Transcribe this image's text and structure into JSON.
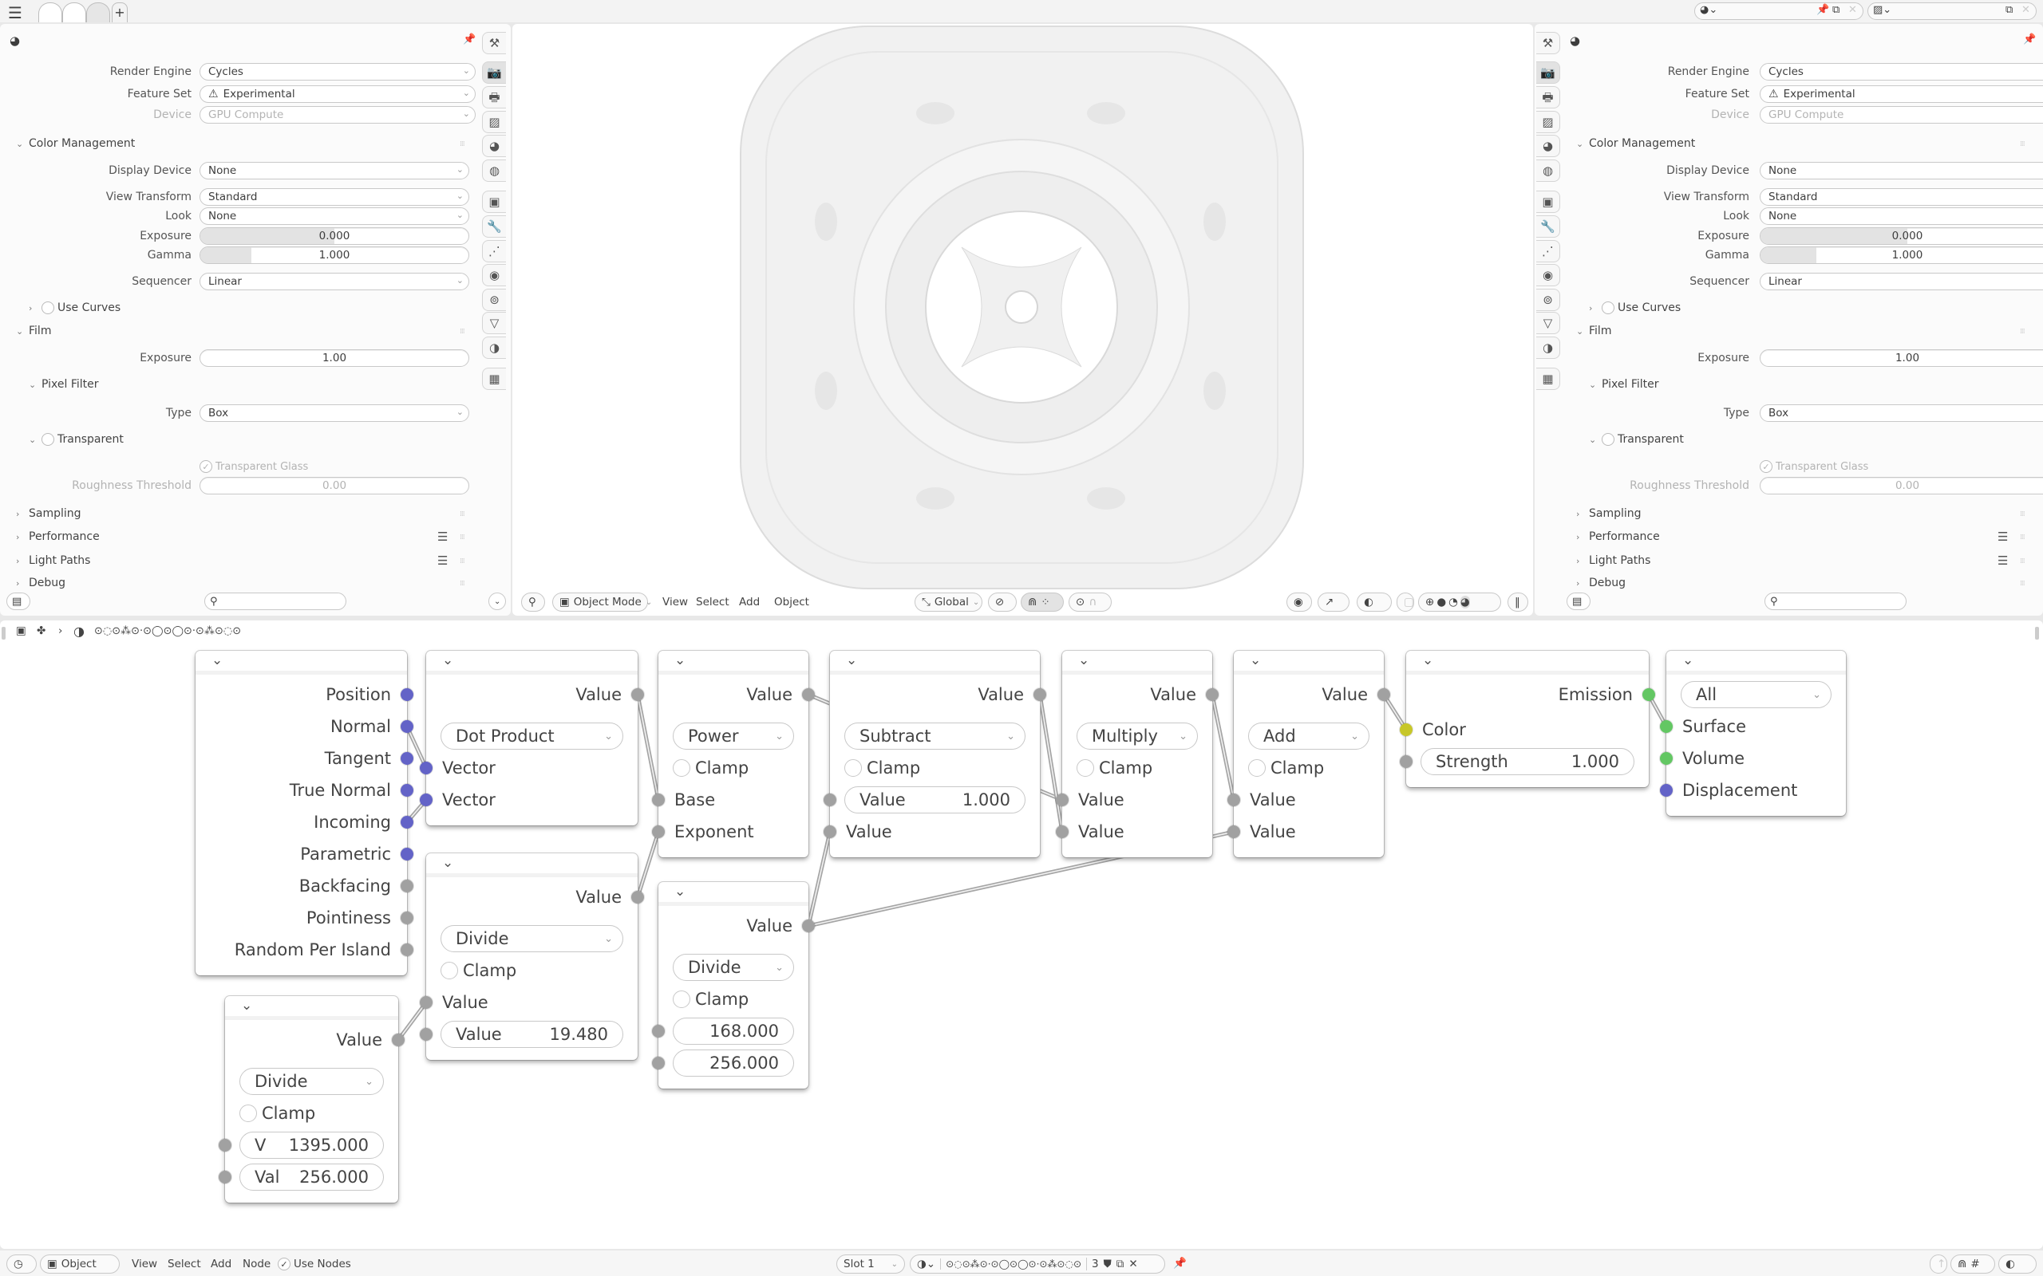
{
  "topbar": {
    "menu_icon": "hamburger-icon",
    "workspace_tabs": [
      "",
      "",
      ""
    ],
    "add_tab": "+",
    "scene_selector": {
      "icon": "scene-icon",
      "value": ""
    },
    "view_layer_selector": {
      "icon": "view-layer-icon",
      "value": ""
    }
  },
  "properties": {
    "header_icon": "world-render-icon",
    "rows": [
      {
        "type": "select",
        "label": "Render Engine",
        "value": "Cycles"
      },
      {
        "type": "select",
        "label": "Feature Set",
        "value": "Experimental",
        "icon": "warning-icon"
      },
      {
        "type": "select",
        "label": "Device",
        "value": "GPU Compute",
        "disabled": true
      },
      {
        "type": "panel",
        "label": "Color Management",
        "open": true
      },
      {
        "type": "select",
        "label": "Display Device",
        "value": "None"
      },
      {
        "type": "select",
        "label": "View Transform",
        "value": "Standard"
      },
      {
        "type": "select",
        "label": "Look",
        "value": "None"
      },
      {
        "type": "slider",
        "label": "Exposure",
        "value": "0.000",
        "fill": 0.5
      },
      {
        "type": "slider",
        "label": "Gamma",
        "value": "1.000",
        "fill": 0.19
      },
      {
        "type": "select",
        "label": "Sequencer",
        "value": "Linear"
      },
      {
        "type": "subpanel",
        "label": "Use Curves",
        "open": false,
        "checkbox": false
      },
      {
        "type": "panel",
        "label": "Film",
        "open": true
      },
      {
        "type": "number",
        "label": "Exposure",
        "value": "1.00"
      },
      {
        "type": "subpanel",
        "label": "Pixel Filter",
        "open": true
      },
      {
        "type": "select",
        "label": "Type",
        "value": "Box"
      },
      {
        "type": "subpanel",
        "label": "Transparent",
        "open": true,
        "checkbox": false
      },
      {
        "type": "checkbox",
        "label": "Transparent Glass",
        "checked": true,
        "disabled": true
      },
      {
        "type": "number",
        "label": "Roughness Threshold",
        "value": "0.00",
        "disabled": true
      },
      {
        "type": "panel",
        "label": "Sampling",
        "open": false
      },
      {
        "type": "panel",
        "label": "Performance",
        "open": false,
        "list_icon": true
      },
      {
        "type": "panel",
        "label": "Light Paths",
        "open": false,
        "list_icon": true
      },
      {
        "type": "panel",
        "label": "Debug",
        "open": false
      }
    ],
    "tabs": [
      {
        "icon": "tool-icon",
        "glyph": "⚒"
      },
      {
        "icon": "render-icon",
        "glyph": "📷",
        "active": true
      },
      {
        "icon": "output-icon",
        "glyph": "🖶"
      },
      {
        "icon": "view-layer-icon",
        "glyph": "▨"
      },
      {
        "icon": "scene-icon",
        "glyph": "◕"
      },
      {
        "icon": "world-icon",
        "glyph": "◍"
      },
      {
        "icon": "object-icon",
        "glyph": "▣"
      },
      {
        "icon": "modifier-wrench-icon",
        "glyph": "🔧"
      },
      {
        "icon": "particles-icon",
        "glyph": "⋰"
      },
      {
        "icon": "physics-icon",
        "glyph": "◉"
      },
      {
        "icon": "constraints-icon",
        "glyph": "⊚"
      },
      {
        "icon": "data-icon",
        "glyph": "▽"
      },
      {
        "icon": "material-icon",
        "glyph": "◑"
      },
      {
        "icon": "texture-icon",
        "glyph": "▦"
      }
    ],
    "search_placeholder": ""
  },
  "viewport": {
    "editor_icon": "object-mode-editor-icon",
    "mode": "Object Mode",
    "menus": [
      "View",
      "Select",
      "Add",
      "Object"
    ],
    "orientation": "Global"
  },
  "node_editor": {
    "breadcrumb": {
      "material_name": "⊙◌⊙⁂⊙·⊙◯⊙◯⊙·⊙⁂⊙◌⊙"
    },
    "socket_colors": {
      "vector": "#6363c7",
      "float": "#a1a1a1",
      "color": "#c7c729",
      "shader": "#63c763"
    },
    "nodes": [
      {
        "id": "geometry",
        "rows": [
          {
            "kind": "out",
            "label": "Position",
            "socket": "vector"
          },
          {
            "kind": "out",
            "label": "Normal",
            "socket": "vector"
          },
          {
            "kind": "out",
            "label": "Tangent",
            "socket": "vector"
          },
          {
            "kind": "out",
            "label": "True Normal",
            "socket": "vector"
          },
          {
            "kind": "out",
            "label": "Incoming",
            "socket": "vector"
          },
          {
            "kind": "out",
            "label": "Parametric",
            "socket": "vector"
          },
          {
            "kind": "out",
            "label": "Backfacing",
            "socket": "float"
          },
          {
            "kind": "out",
            "label": "Pointiness",
            "socket": "float"
          },
          {
            "kind": "out",
            "label": "Random Per Island",
            "socket": "float"
          }
        ]
      },
      {
        "id": "dot",
        "rows": [
          {
            "kind": "out",
            "label": "Value",
            "socket": "float"
          },
          {
            "kind": "select",
            "value": "Dot Product"
          },
          {
            "kind": "in",
            "label": "Vector",
            "socket": "vector"
          },
          {
            "kind": "in",
            "label": "Vector",
            "socket": "vector"
          }
        ]
      },
      {
        "id": "divmid",
        "rows": [
          {
            "kind": "out",
            "label": "Value",
            "socket": "float"
          },
          {
            "kind": "select",
            "value": "Divide"
          },
          {
            "kind": "check",
            "label": "Clamp"
          },
          {
            "kind": "in",
            "label": "Value",
            "socket": "float"
          },
          {
            "kind": "field",
            "label": "Value",
            "value": "19.480",
            "socket": "float"
          }
        ]
      },
      {
        "id": "divbl",
        "rows": [
          {
            "kind": "out",
            "label": "Value",
            "socket": "float"
          },
          {
            "kind": "select",
            "value": "Divide"
          },
          {
            "kind": "check",
            "label": "Clamp"
          },
          {
            "kind": "field",
            "label": "V",
            "value": "1395.000",
            "socket": "float"
          },
          {
            "kind": "field",
            "label": "Val",
            "value": "256.000",
            "socket": "float"
          }
        ]
      },
      {
        "id": "power",
        "rows": [
          {
            "kind": "out",
            "label": "Value",
            "socket": "float"
          },
          {
            "kind": "select",
            "value": "Power"
          },
          {
            "kind": "check",
            "label": "Clamp"
          },
          {
            "kind": "in",
            "label": "Base",
            "socket": "float"
          },
          {
            "kind": "in",
            "label": "Exponent",
            "socket": "float"
          }
        ]
      },
      {
        "id": "divright",
        "rows": [
          {
            "kind": "out",
            "label": "Value",
            "socket": "float"
          },
          {
            "kind": "select",
            "value": "Divide"
          },
          {
            "kind": "check",
            "label": "Clamp"
          },
          {
            "kind": "field",
            "label": "",
            "value": "168.000",
            "socket": "float"
          },
          {
            "kind": "field",
            "label": "",
            "value": "256.000",
            "socket": "float"
          }
        ]
      },
      {
        "id": "subtract",
        "rows": [
          {
            "kind": "out",
            "label": "Value",
            "socket": "float"
          },
          {
            "kind": "select",
            "value": "Subtract"
          },
          {
            "kind": "check",
            "label": "Clamp"
          },
          {
            "kind": "field",
            "label": "Value",
            "value": "1.000",
            "socket": "float"
          },
          {
            "kind": "in",
            "label": "Value",
            "socket": "float"
          }
        ]
      },
      {
        "id": "multiply",
        "rows": [
          {
            "kind": "out",
            "label": "Value",
            "socket": "float"
          },
          {
            "kind": "select",
            "value": "Multiply"
          },
          {
            "kind": "check",
            "label": "Clamp"
          },
          {
            "kind": "in",
            "label": "Value",
            "socket": "float"
          },
          {
            "kind": "in",
            "label": "Value",
            "socket": "float"
          }
        ]
      },
      {
        "id": "add",
        "rows": [
          {
            "kind": "out",
            "label": "Value",
            "socket": "float"
          },
          {
            "kind": "select",
            "value": "Add"
          },
          {
            "kind": "check",
            "label": "Clamp"
          },
          {
            "kind": "in",
            "label": "Value",
            "socket": "float"
          },
          {
            "kind": "in",
            "label": "Value",
            "socket": "float"
          }
        ]
      },
      {
        "id": "emission",
        "rows": [
          {
            "kind": "out",
            "label": "Emission",
            "socket": "shader"
          },
          {
            "kind": "in",
            "label": "Color",
            "socket": "color"
          },
          {
            "kind": "field",
            "label": "Strength",
            "value": "1.000",
            "socket": "float"
          }
        ]
      },
      {
        "id": "output",
        "rows": [
          {
            "kind": "select",
            "value": "All"
          },
          {
            "kind": "in",
            "label": "Surface",
            "socket": "shader"
          },
          {
            "kind": "in",
            "label": "Volume",
            "socket": "shader"
          },
          {
            "kind": "in",
            "label": "Displacement",
            "socket": "vector"
          }
        ]
      }
    ],
    "links": [
      {
        "from": "geometry.out1",
        "to": "dot.in0"
      },
      {
        "from": "geometry.out4",
        "to": "dot.in1"
      },
      {
        "from": "dot.out0",
        "to": "power.in0"
      },
      {
        "from": "divmid.out0",
        "to": "power.in1"
      },
      {
        "from": "divbl.out0",
        "to": "divmid.in0"
      },
      {
        "from": "power.out0",
        "to": "multiply.in0"
      },
      {
        "from": "subtract.out0",
        "to": "multiply.in1"
      },
      {
        "from": "divright.out0",
        "to": "subtract.in1"
      },
      {
        "from": "divright.out0",
        "to": "add.in1"
      },
      {
        "from": "multiply.out0",
        "to": "add.in0"
      },
      {
        "from": "add.out0",
        "to": "emission.in0"
      },
      {
        "from": "emission.out0",
        "to": "output.in0"
      }
    ]
  },
  "node_header": {
    "editor_icon": "shader-editor-icon",
    "object_type": "Object",
    "menus": [
      "View",
      "Select",
      "Add",
      "Node"
    ],
    "use_nodes_label": "Use Nodes",
    "use_nodes": true,
    "slot": "Slot 1",
    "material_name": "⊙◌⊙⁂⊙·⊙◯⊙◯⊙·⊙⁂⊙◌⊙",
    "users": "3"
  }
}
